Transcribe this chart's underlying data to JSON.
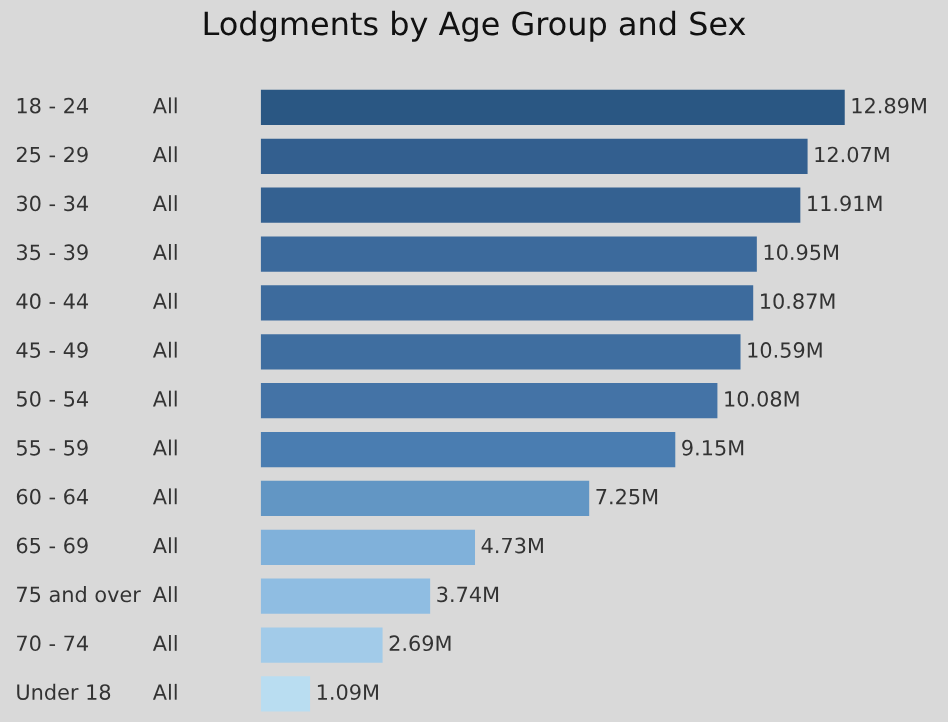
{
  "chart_data": {
    "type": "bar",
    "orientation": "horizontal",
    "title": "Lodgments by Age Group and Sex",
    "categories": [
      "18 - 24",
      "25 - 29",
      "30 - 34",
      "35 - 39",
      "40 - 44",
      "45 - 49",
      "50 - 54",
      "55 - 59",
      "60 - 64",
      "65 - 69",
      "75 and over",
      "70 - 74",
      "Under 18"
    ],
    "y2_categories": [
      "All",
      "All",
      "All",
      "All",
      "All",
      "All",
      "All",
      "All",
      "All",
      "All",
      "All",
      "All",
      "All"
    ],
    "values": [
      12.89,
      12.07,
      11.91,
      10.95,
      10.87,
      10.59,
      10.08,
      9.15,
      7.25,
      4.73,
      3.74,
      2.69,
      1.09
    ],
    "value_labels": [
      "12.89M",
      "12.07M",
      "11.91M",
      "10.95M",
      "10.87M",
      "10.59M",
      "10.08M",
      "9.15M",
      "7.25M",
      "4.73M",
      "3.74M",
      "2.69M",
      "1.09M"
    ],
    "colors": [
      "#2a5783",
      "#335f8f",
      "#346191",
      "#3c6a9c",
      "#3d6b9d",
      "#3f6ea0",
      "#4473a6",
      "#4a7db1",
      "#6296c4",
      "#80b1da",
      "#8fbde2",
      "#a2cbe9",
      "#b9ddf1"
    ],
    "data_labels": false
  }
}
